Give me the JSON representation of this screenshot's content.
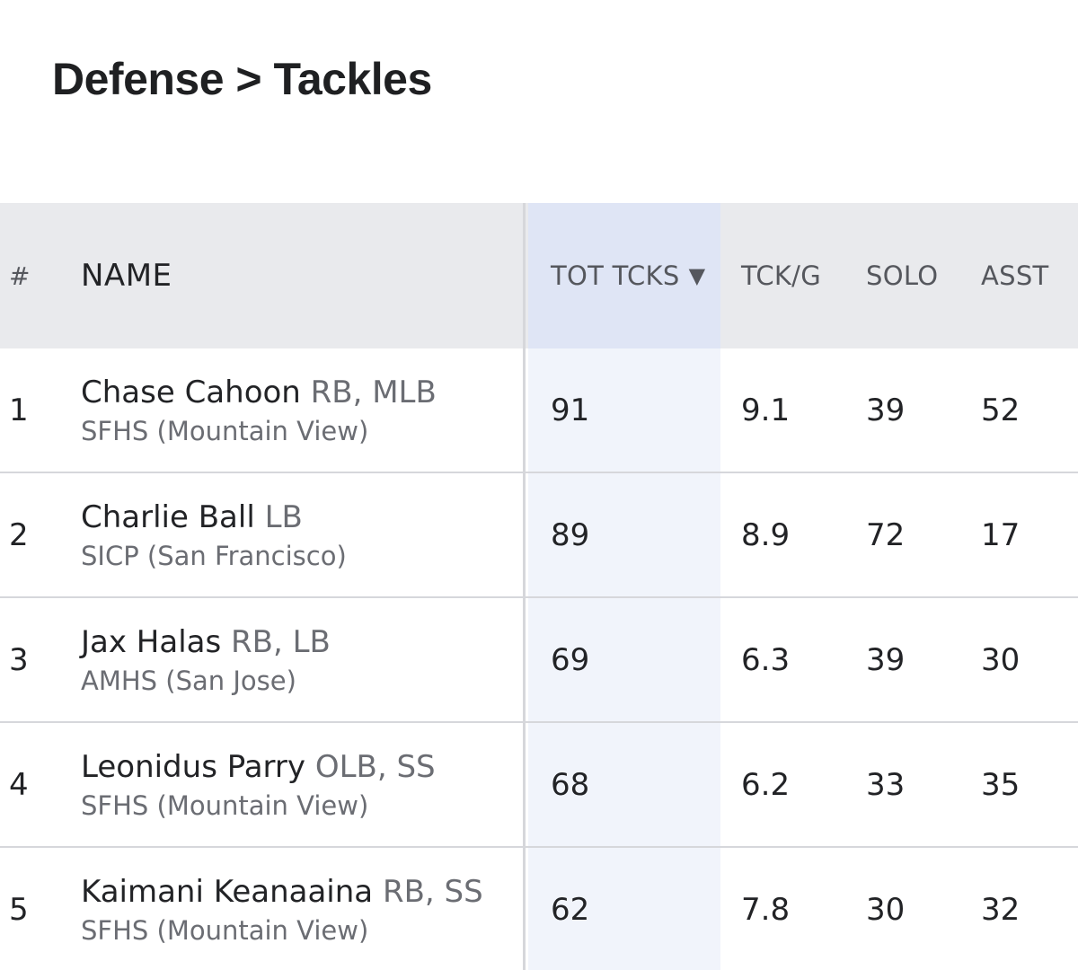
{
  "page": {
    "title": "Defense > Tackles"
  },
  "table": {
    "headers": {
      "rank": "#",
      "name": "NAME",
      "tot_tcks": "TOT TCKS",
      "sort_glyph": "▼",
      "tck_g": "TCK/G",
      "solo": "SOLO",
      "asst": "ASST"
    },
    "rows": [
      {
        "rank": "1",
        "name": "Chase Cahoon",
        "positions": "RB, MLB",
        "school": "SFHS (Mountain View)",
        "tot_tcks": "91",
        "tck_g": "9.1",
        "solo": "39",
        "asst": "52"
      },
      {
        "rank": "2",
        "name": "Charlie Ball",
        "positions": "LB",
        "school": "SICP (San Francisco)",
        "tot_tcks": "89",
        "tck_g": "8.9",
        "solo": "72",
        "asst": "17"
      },
      {
        "rank": "3",
        "name": "Jax Halas",
        "positions": "RB, LB",
        "school": "AMHS (San Jose)",
        "tot_tcks": "69",
        "tck_g": "6.3",
        "solo": "39",
        "asst": "30"
      },
      {
        "rank": "4",
        "name": "Leonidus Parry",
        "positions": "OLB, SS",
        "school": "SFHS (Mountain View)",
        "tot_tcks": "68",
        "tck_g": "6.2",
        "solo": "33",
        "asst": "35"
      },
      {
        "rank": "5",
        "name": "Kaimani Keanaaina",
        "positions": "RB, SS",
        "school": "SFHS (Mountain View)",
        "tot_tcks": "62",
        "tck_g": "7.8",
        "solo": "30",
        "asst": "32"
      }
    ]
  },
  "colors": {
    "header_bg": "#e9eaed",
    "sorted_column_bg": "#f1f4fb",
    "sorted_header_bg": "#dfe5f5",
    "divider": "#d6d7db",
    "secondary_text": "#6b6d73"
  }
}
